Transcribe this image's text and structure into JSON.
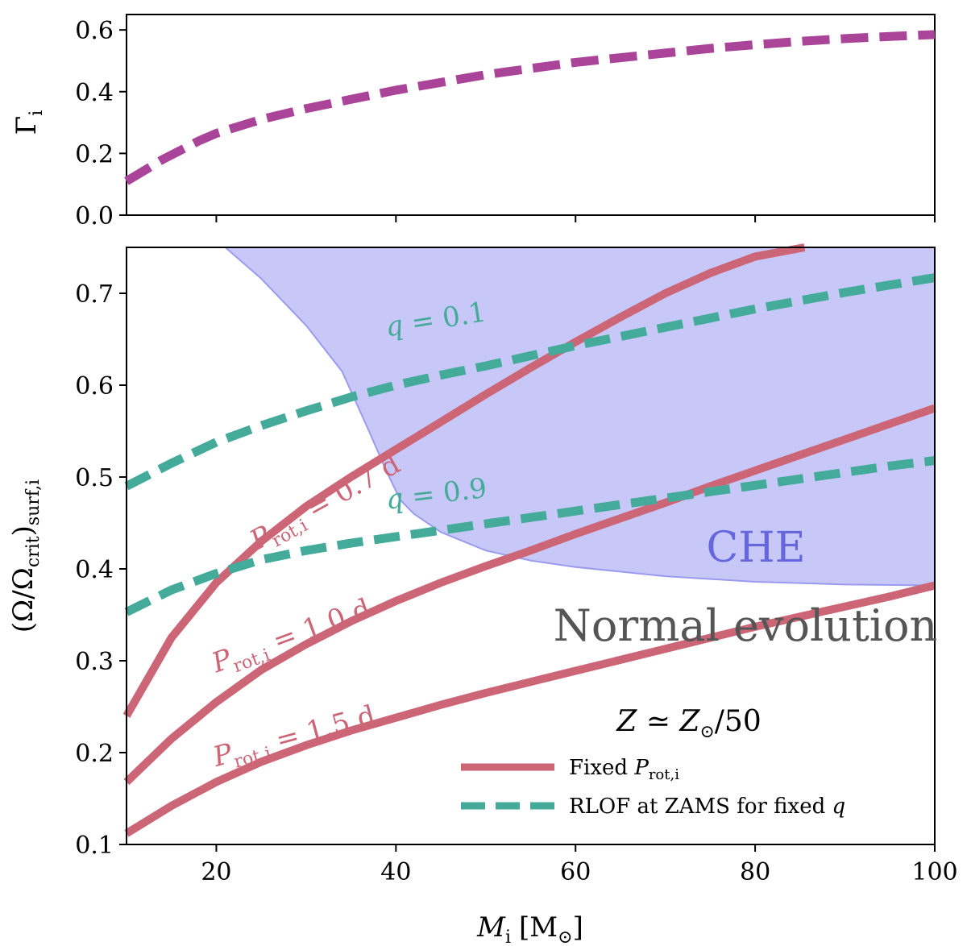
{
  "colors": {
    "rot": "#cc6677",
    "rlof": "#44aa99",
    "gamma": "#aa4499",
    "che_fill": "#c8c8f8",
    "che_edge": "#9a9af0",
    "che_text": "#6666dd",
    "normal_text": "#555555"
  },
  "chart_data": [
    {
      "type": "line",
      "name": "top-panel",
      "ylabel": "Γ",
      "ylabel_sub": "i",
      "xlim": [
        10,
        100
      ],
      "ylim": [
        0.0,
        0.65
      ],
      "yticks": [
        0.0,
        0.2,
        0.4,
        0.6
      ],
      "ytick_labels": [
        "0.0",
        "0.2",
        "0.4",
        "0.6"
      ],
      "xticks": [
        20,
        40,
        60,
        80,
        100
      ],
      "series": [
        {
          "name": "gamma",
          "style": "dashed",
          "x": [
            10,
            12,
            14,
            16,
            18,
            20,
            25,
            30,
            35,
            40,
            45,
            50,
            55,
            60,
            65,
            70,
            75,
            80,
            85,
            90,
            95,
            100
          ],
          "y": [
            0.11,
            0.145,
            0.18,
            0.21,
            0.24,
            0.265,
            0.31,
            0.345,
            0.375,
            0.405,
            0.43,
            0.455,
            0.475,
            0.495,
            0.51,
            0.525,
            0.54,
            0.552,
            0.563,
            0.572,
            0.579,
            0.585
          ]
        }
      ]
    },
    {
      "type": "line",
      "name": "bottom-panel",
      "xlabel": "M",
      "xlabel_sub": "i",
      "xlabel_unit": "[M",
      "xlabel_unit_sub": "⊙",
      "xlabel_unit_close": "]",
      "ylabel": "(Ω/Ω",
      "ylabel_sub1": "crit",
      "ylabel_mid": ")",
      "ylabel_sub2": "surf,i",
      "xlim": [
        10,
        100
      ],
      "ylim": [
        0.1,
        0.75
      ],
      "yticks": [
        0.1,
        0.2,
        0.3,
        0.4,
        0.5,
        0.6,
        0.7
      ],
      "ytick_labels": [
        "0.1",
        "0.2",
        "0.3",
        "0.4",
        "0.5",
        "0.6",
        "0.7"
      ],
      "xticks": [
        20,
        40,
        60,
        80,
        100
      ],
      "xtick_labels": [
        "20",
        "40",
        "60",
        "80",
        "100"
      ],
      "region": {
        "name": "CHE",
        "boundary_x": [
          21,
          25,
          30,
          34,
          37,
          39,
          40.5,
          42,
          45,
          50,
          55,
          60,
          70,
          80,
          90,
          100
        ],
        "boundary_y": [
          0.75,
          0.716,
          0.665,
          0.615,
          0.55,
          0.505,
          0.475,
          0.46,
          0.44,
          0.42,
          0.409,
          0.402,
          0.392,
          0.386,
          0.383,
          0.382
        ]
      },
      "series": [
        {
          "name": "Prot-0.7d",
          "group": "rot",
          "x": [
            10,
            15,
            20,
            25,
            30,
            35,
            40,
            45,
            50,
            55,
            60,
            65,
            70,
            75,
            80,
            85.5
          ],
          "y": [
            0.24,
            0.325,
            0.385,
            0.43,
            0.468,
            0.5,
            0.53,
            0.56,
            0.59,
            0.619,
            0.647,
            0.674,
            0.7,
            0.722,
            0.74,
            0.75
          ]
        },
        {
          "name": "Prot-1.0d",
          "group": "rot",
          "x": [
            10,
            15,
            20,
            25,
            30,
            35,
            40,
            45,
            50,
            55,
            60,
            65,
            70,
            75,
            80,
            85,
            90,
            95,
            100
          ],
          "y": [
            0.168,
            0.215,
            0.255,
            0.29,
            0.318,
            0.343,
            0.365,
            0.385,
            0.403,
            0.42,
            0.438,
            0.455,
            0.472,
            0.49,
            0.507,
            0.524,
            0.541,
            0.558,
            0.575
          ]
        },
        {
          "name": "Prot-1.5d",
          "group": "rot",
          "x": [
            10,
            15,
            20,
            25,
            30,
            35,
            40,
            45,
            50,
            55,
            60,
            65,
            70,
            75,
            80,
            85,
            90,
            95,
            100
          ],
          "y": [
            0.112,
            0.142,
            0.168,
            0.19,
            0.208,
            0.224,
            0.238,
            0.252,
            0.265,
            0.277,
            0.289,
            0.301,
            0.313,
            0.325,
            0.337,
            0.348,
            0.359,
            0.37,
            0.382
          ]
        },
        {
          "name": "q-0.1",
          "group": "rlof",
          "x": [
            10,
            15,
            20,
            25,
            30,
            35,
            40,
            45,
            50,
            55,
            60,
            65,
            70,
            75,
            80,
            85,
            90,
            95,
            100
          ],
          "y": [
            0.49,
            0.515,
            0.538,
            0.556,
            0.572,
            0.587,
            0.6,
            0.611,
            0.621,
            0.632,
            0.643,
            0.653,
            0.663,
            0.673,
            0.683,
            0.692,
            0.701,
            0.709,
            0.717
          ]
        },
        {
          "name": "q-0.9",
          "group": "rlof",
          "x": [
            10,
            15,
            20,
            25,
            30,
            35,
            40,
            45,
            50,
            55,
            60,
            65,
            70,
            75,
            80,
            85,
            90,
            95,
            100
          ],
          "y": [
            0.353,
            0.377,
            0.395,
            0.41,
            0.42,
            0.428,
            0.435,
            0.442,
            0.449,
            0.456,
            0.463,
            0.47,
            0.477,
            0.484,
            0.491,
            0.498,
            0.505,
            0.512,
            0.518
          ]
        }
      ],
      "curve_labels": [
        {
          "name": "label-prot-07",
          "main": "P",
          "sub": "rot,i",
          "rest": " = 0.7 d",
          "color": "rot",
          "x": 24.5,
          "y": 0.42,
          "angle": -29
        },
        {
          "name": "label-prot-10",
          "main": "P",
          "sub": "rot,i",
          "rest": " = 1.0 d",
          "color": "rot",
          "x": 20,
          "y": 0.287,
          "angle": -20
        },
        {
          "name": "label-prot-15",
          "main": "P",
          "sub": "rot,i",
          "rest": " = 1.5 d",
          "color": "rot",
          "x": 20,
          "y": 0.185,
          "angle": -15
        },
        {
          "name": "label-q-01",
          "main": "q",
          "sub": "",
          "rest": " = 0.1",
          "color": "rlof",
          "x": 39,
          "y": 0.653,
          "angle": -9
        },
        {
          "name": "label-q-09",
          "main": "q",
          "sub": "",
          "rest": " = 0.9",
          "color": "rlof",
          "x": 39,
          "y": 0.465,
          "angle": -7
        }
      ],
      "annotations": {
        "che": "CHE",
        "normal": "Normal evolution",
        "metallicity_main": "Z",
        "metallicity_op": " ≃ ",
        "metallicity_z": "Z",
        "metallicity_zsub": "⊙",
        "metallicity_rest": "/50"
      },
      "legend": {
        "placement": "lower-right",
        "items": [
          {
            "label_main": "Fixed ",
            "label_italic": "P",
            "label_sub": "rot,i",
            "style": "solid",
            "color": "rot"
          },
          {
            "label_main": "RLOF at ZAMS for fixed ",
            "label_italic": "q",
            "label_sub": "",
            "style": "dashed",
            "color": "rlof"
          }
        ]
      }
    }
  ]
}
